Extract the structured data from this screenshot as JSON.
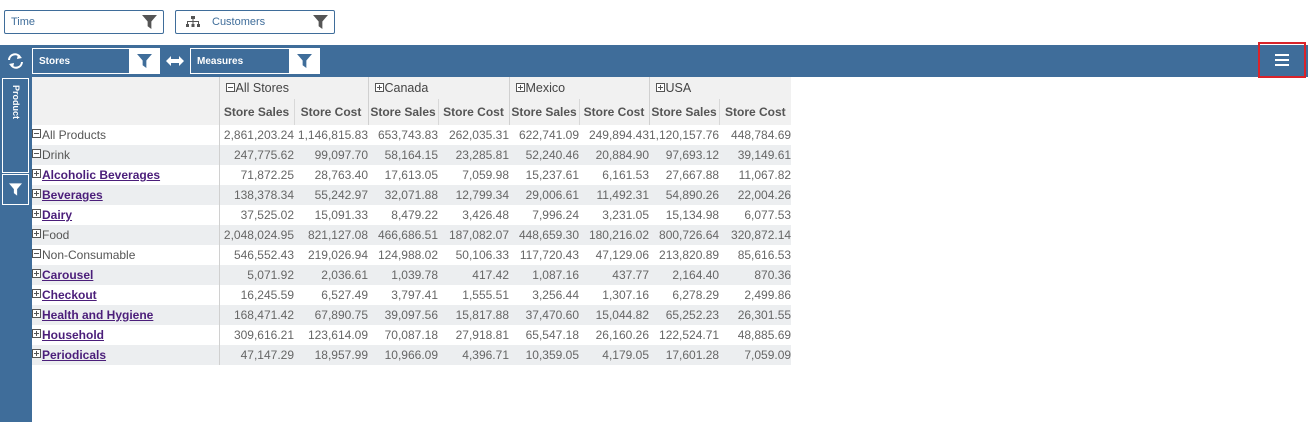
{
  "filters": {
    "time_label": "Time",
    "customers_label": "Customers"
  },
  "toolbar": {
    "rows_label": "Stores",
    "cols_label": "Measures"
  },
  "sidebar": {
    "product_label": "Product"
  },
  "pivot": {
    "groups": [
      "All Stores",
      "Canada",
      "Mexico",
      "USA"
    ],
    "measures": [
      "Store Sales",
      "Store Cost"
    ],
    "rows": [
      {
        "label": "All Products",
        "level": 0,
        "toggle": "minus",
        "link": false,
        "values": [
          "2,861,203.24",
          "1,146,815.83",
          "653,743.83",
          "262,035.31",
          "622,741.09",
          "249,894.43",
          "1,120,157.76",
          "448,784.69"
        ]
      },
      {
        "label": "Drink",
        "level": 1,
        "toggle": "minus",
        "link": false,
        "values": [
          "247,775.62",
          "99,097.70",
          "58,164.15",
          "23,285.81",
          "52,240.46",
          "20,884.90",
          "97,693.12",
          "39,149.61"
        ]
      },
      {
        "label": "Alcoholic Beverages",
        "level": 2,
        "toggle": "plus",
        "link": true,
        "values": [
          "71,872.25",
          "28,763.40",
          "17,613.05",
          "7,059.98",
          "15,237.61",
          "6,161.53",
          "27,667.88",
          "11,067.82"
        ]
      },
      {
        "label": "Beverages",
        "level": 2,
        "toggle": "plus",
        "link": true,
        "values": [
          "138,378.34",
          "55,242.97",
          "32,071.88",
          "12,799.34",
          "29,006.61",
          "11,492.31",
          "54,890.26",
          "22,004.26"
        ]
      },
      {
        "label": "Dairy",
        "level": 2,
        "toggle": "plus",
        "link": true,
        "values": [
          "37,525.02",
          "15,091.33",
          "8,479.22",
          "3,426.48",
          "7,996.24",
          "3,231.05",
          "15,134.98",
          "6,077.53"
        ]
      },
      {
        "label": "Food",
        "level": 1,
        "toggle": "plus",
        "link": false,
        "values": [
          "2,048,024.95",
          "821,127.08",
          "466,686.51",
          "187,082.07",
          "448,659.30",
          "180,216.02",
          "800,726.64",
          "320,872.14"
        ]
      },
      {
        "label": "Non-Consumable",
        "level": 1,
        "toggle": "minus",
        "link": false,
        "values": [
          "546,552.43",
          "219,026.94",
          "124,988.02",
          "50,106.33",
          "117,720.43",
          "47,129.06",
          "213,820.89",
          "85,616.53"
        ]
      },
      {
        "label": "Carousel",
        "level": 2,
        "toggle": "plus",
        "link": true,
        "values": [
          "5,071.92",
          "2,036.61",
          "1,039.78",
          "417.42",
          "1,087.16",
          "437.77",
          "2,164.40",
          "870.36"
        ]
      },
      {
        "label": "Checkout",
        "level": 2,
        "toggle": "plus",
        "link": true,
        "values": [
          "16,245.59",
          "6,527.49",
          "3,797.41",
          "1,555.51",
          "3,256.44",
          "1,307.16",
          "6,278.29",
          "2,499.86"
        ]
      },
      {
        "label": "Health and Hygiene",
        "level": 2,
        "toggle": "plus",
        "link": true,
        "values": [
          "168,471.42",
          "67,890.75",
          "39,097.56",
          "15,817.88",
          "37,470.60",
          "15,044.82",
          "65,252.23",
          "26,301.55"
        ]
      },
      {
        "label": "Household",
        "level": 2,
        "toggle": "plus",
        "link": true,
        "values": [
          "309,616.21",
          "123,614.09",
          "70,087.18",
          "27,918.81",
          "65,547.18",
          "26,160.26",
          "122,524.71",
          "48,885.69"
        ]
      },
      {
        "label": "Periodicals",
        "level": 2,
        "toggle": "plus",
        "link": true,
        "values": [
          "47,147.29",
          "18,957.99",
          "10,966.09",
          "4,396.71",
          "10,359.05",
          "4,179.05",
          "17,601.28",
          "7,059.09"
        ]
      }
    ]
  },
  "colors": {
    "toolbar_bg": "#3f6d9a",
    "link": "#4b1e7a",
    "highlight_border": "#d9232a"
  }
}
